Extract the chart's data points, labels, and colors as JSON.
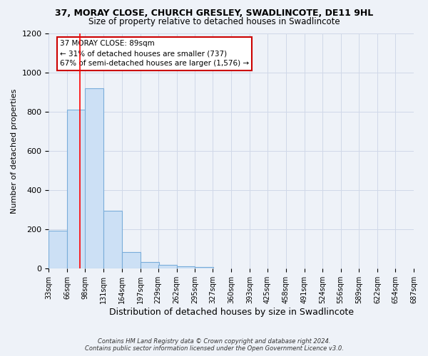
{
  "title_line1": "37, MORAY CLOSE, CHURCH GRESLEY, SWADLINCOTE, DE11 9HL",
  "title_line2": "Size of property relative to detached houses in Swadlincote",
  "xlabel": "Distribution of detached houses by size in Swadlincote",
  "ylabel": "Number of detached properties",
  "bar_left_edges": [
    33,
    66,
    98,
    131,
    164,
    197,
    229,
    262,
    295,
    327,
    360,
    393,
    425,
    458,
    491,
    524,
    556,
    589,
    622,
    654
  ],
  "bar_heights": [
    195,
    810,
    920,
    295,
    85,
    35,
    18,
    12,
    10,
    0,
    0,
    0,
    0,
    0,
    0,
    0,
    0,
    0,
    0,
    0
  ],
  "bin_width": 33,
  "bar_color": "#cce0f5",
  "bar_edge_color": "#7aadda",
  "grid_color": "#d0d8e8",
  "red_line_x": 89,
  "annotation_line1": "37 MORAY CLOSE: 89sqm",
  "annotation_line2": "← 31% of detached houses are smaller (737)",
  "annotation_line3": "67% of semi-detached houses are larger (1,576) →",
  "ylim": [
    0,
    1200
  ],
  "yticks": [
    0,
    200,
    400,
    600,
    800,
    1000,
    1200
  ],
  "xtick_labels": [
    "33sqm",
    "66sqm",
    "98sqm",
    "131sqm",
    "164sqm",
    "197sqm",
    "229sqm",
    "262sqm",
    "295sqm",
    "327sqm",
    "360sqm",
    "393sqm",
    "425sqm",
    "458sqm",
    "491sqm",
    "524sqm",
    "556sqm",
    "589sqm",
    "622sqm",
    "654sqm",
    "687sqm"
  ],
  "footer_text": "Contains HM Land Registry data © Crown copyright and database right 2024.\nContains public sector information licensed under the Open Government Licence v3.0.",
  "background_color": "#eef2f8",
  "plot_bg_color": "#eef2f8"
}
